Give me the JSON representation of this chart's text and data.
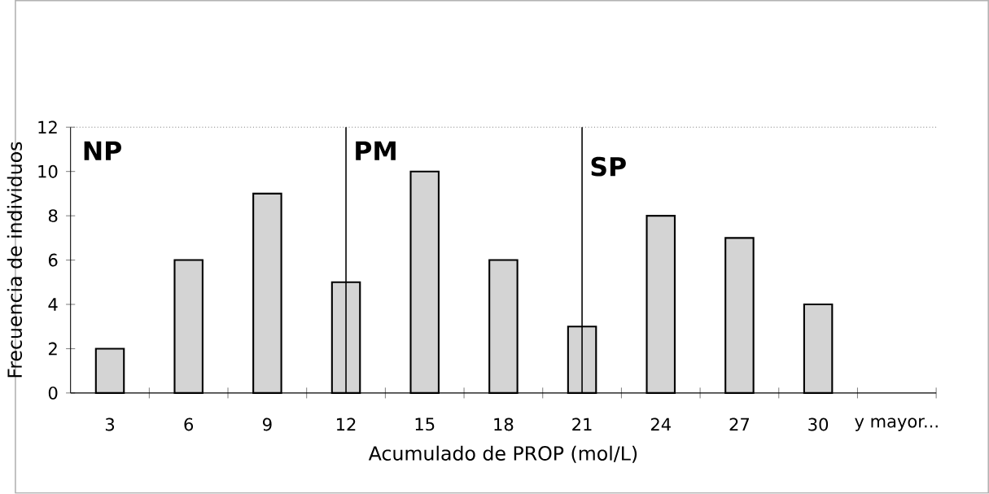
{
  "chart_data": {
    "type": "bar",
    "xlabel": "Acumulado de PROP (mol/L)",
    "ylabel": "Frecuencia de individuos",
    "categories": [
      "3",
      "6",
      "9",
      "12",
      "15",
      "18",
      "21",
      "24",
      "27",
      "30",
      "y mayor..."
    ],
    "values": [
      2,
      6,
      9,
      5,
      10,
      6,
      3,
      8,
      7,
      4,
      null
    ],
    "color": "#d4d4d4",
    "ylim": [
      0,
      12
    ],
    "yticks": [
      0,
      2,
      4,
      6,
      8,
      10,
      12
    ],
    "ref_lines": [
      {
        "axis": "x",
        "value": "12",
        "label": "PM"
      },
      {
        "axis": "x",
        "value": "21",
        "label": "SP"
      }
    ],
    "annotations": [
      "NP"
    ]
  }
}
